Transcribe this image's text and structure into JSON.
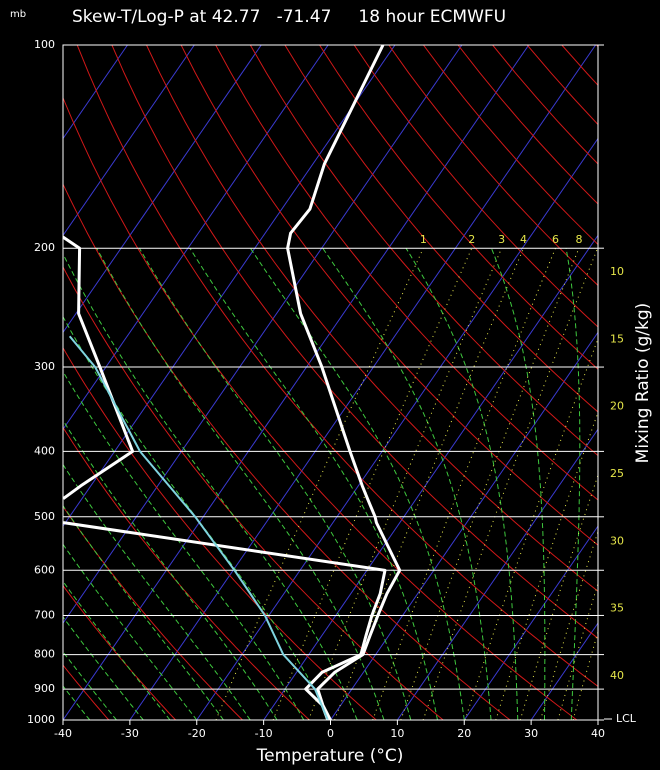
{
  "chart_data": {
    "type": "skewt",
    "unit_label": "mb",
    "title": "Skew-T/Log-P at 42.77   -71.47     18 hour ECMWFU",
    "x_label": "Temperature (°C)",
    "y2_label": "Mixing Ratio (g/kg)",
    "lcl_label": "LCL",
    "xlim": [
      -40,
      40
    ],
    "xticks": [
      -40,
      -30,
      -20,
      -10,
      0,
      10,
      20,
      30,
      40
    ],
    "ylim": [
      1000,
      100
    ],
    "yticks": [
      100,
      200,
      300,
      400,
      500,
      600,
      700,
      800,
      900,
      1000
    ],
    "ylog": true,
    "grid": true,
    "mixing_ratios": [
      1,
      2,
      3,
      4,
      6,
      8,
      10,
      15,
      20,
      25,
      30,
      35,
      40
    ],
    "series": [
      {
        "color": "#ffffff",
        "pressure": [
          1000,
          950,
          900,
          850,
          800,
          750,
          700,
          650,
          600,
          510,
          500,
          470,
          450,
          400,
          300,
          250,
          200,
          190,
          175,
          150,
          100
        ],
        "values": [
          0,
          -2.7,
          -5.1,
          -4.3,
          -1.9,
          -2.8,
          -3.7,
          -4.6,
          -5.1,
          -13.5,
          -14.3,
          -17.3,
          -19.4,
          -24.8,
          -37.7,
          -46.4,
          -55.1,
          -56.2,
          -55.8,
          -58.3,
          -61.8
        ]
      },
      {
        "color": "#ffffff",
        "pressure": [
          1000,
          950,
          900,
          850,
          800,
          750,
          700,
          650,
          600,
          510,
          500,
          470,
          450,
          400,
          300,
          250,
          200,
          190
        ],
        "values": [
          -0.4,
          -2.8,
          -6.9,
          -6.2,
          -2.2,
          -3.4,
          -4.6,
          -5.6,
          -7.3,
          -60.3,
          null,
          -62.8,
          -61.5,
          -57.3,
          -70.9,
          -79.6,
          -86.2,
          -91.1
        ]
      },
      {
        "color": "#7fd3df",
        "pressure": [
          1000,
          900,
          800,
          700,
          600,
          500,
          400,
          300,
          270
        ],
        "values": [
          -0.4,
          -5.5,
          -13.8,
          -20.6,
          -29.8,
          -41.2,
          -56.2,
          -71.6,
          -78.6
        ]
      }
    ]
  }
}
